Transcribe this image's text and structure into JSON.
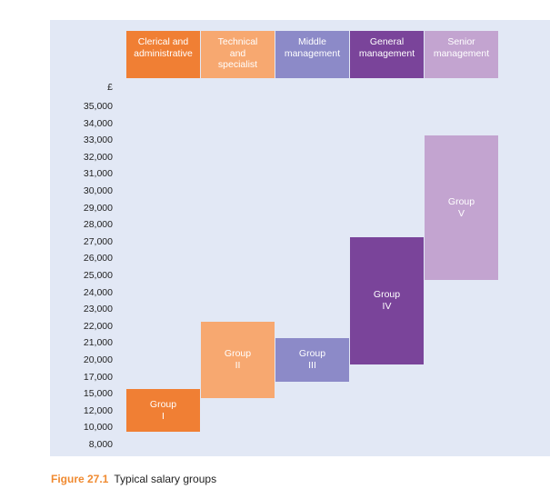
{
  "caption": {
    "label": "Figure 27.1",
    "text": "Typical salary groups"
  },
  "chart_data": {
    "type": "bar",
    "unit_label": "£",
    "y_ticks": [
      "35,000",
      "34,000",
      "33,000",
      "32,000",
      "31,000",
      "30,000",
      "29,000",
      "28,000",
      "27,000",
      "26,000",
      "25,000",
      "24,000",
      "23,000",
      "22,000",
      "21,000",
      "20,000",
      "17,000",
      "15,000",
      "12,000",
      "10,000",
      "8,000"
    ],
    "categories": [
      "Clerical and administrative",
      "Technical and specialist",
      "Middle management",
      "General management",
      "Senior management"
    ],
    "header_text": [
      "Clerical and\nadministrative",
      "Technical\nand\nspecialist",
      "Middle\nmanagement",
      "General\nmanagement",
      "Senior\nmanagement"
    ],
    "series": [
      {
        "group": "Group\nI",
        "low": "10,000",
        "high": "15,000",
        "color": "#f07f34",
        "header_color": "#f07f34"
      },
      {
        "group": "Group\nII",
        "low": "15,000",
        "high": "22,000",
        "color": "#f7a870",
        "header_color": "#f7a870"
      },
      {
        "group": "Group\nIII",
        "low": "17,000",
        "high": "21,000",
        "color": "#8c8ac8",
        "header_color": "#8c8ac8"
      },
      {
        "group": "Group\nIV",
        "low": "20,000",
        "high": "27,000",
        "color": "#7a449a",
        "header_color": "#7a449a"
      },
      {
        "group": "Group\nV",
        "low": "25,000",
        "high": "33,000",
        "color": "#c3a4d0",
        "header_color": "#c3a4d0"
      }
    ]
  }
}
